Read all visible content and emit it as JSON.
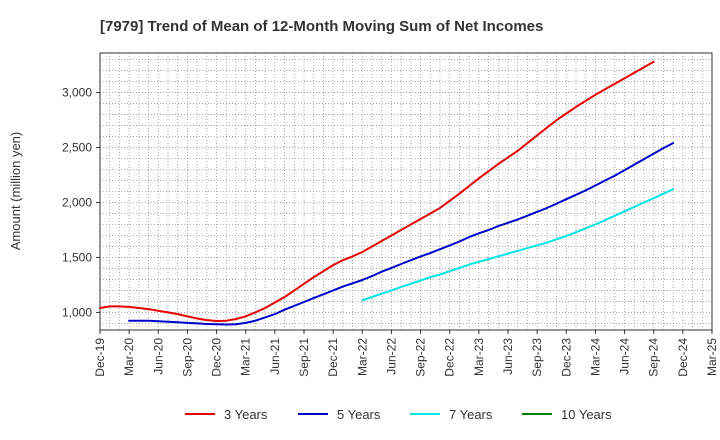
{
  "chart_data": {
    "type": "line",
    "title": "[7979]  Trend of Mean of 12-Month Moving Sum of Net Incomes",
    "ylabel": "Amount (million yen)",
    "xlabel": "",
    "x_ticks": [
      "Dec-19",
      "Mar-20",
      "Jun-20",
      "Sep-20",
      "Dec-20",
      "Mar-21",
      "Jun-21",
      "Sep-21",
      "Dec-21",
      "Mar-22",
      "Jun-22",
      "Sep-22",
      "Dec-22",
      "Mar-23",
      "Jun-23",
      "Sep-23",
      "Dec-23",
      "Mar-24",
      "Jun-24",
      "Sep-24",
      "Dec-24",
      "Mar-25"
    ],
    "y_ticks": [
      1000,
      1500,
      2000,
      2500,
      3000
    ],
    "y_tick_labels": [
      "1,000",
      "1,500",
      "2,000",
      "2,500",
      "3,000"
    ],
    "ylim": [
      840,
      3360
    ],
    "xlim": [
      "Dec-19",
      "Mar-25"
    ],
    "grid": true,
    "legend_position": "bottom",
    "series": [
      {
        "name": "3 Years",
        "color": "#e60000",
        "start": "Dec-19",
        "values": [
          1040,
          1055,
          1055,
          1050,
          1040,
          1030,
          1015,
          1000,
          985,
          965,
          945,
          930,
          922,
          925,
          940,
          965,
          1000,
          1040,
          1090,
          1140,
          1200,
          1260,
          1320,
          1375,
          1430,
          1475,
          1510,
          1550,
          1600,
          1650,
          1700,
          1750,
          1800,
          1850,
          1900,
          1950,
          2015,
          2080,
          2150,
          2220,
          2285,
          2350,
          2410,
          2470,
          2540,
          2610,
          2680,
          2750,
          2810,
          2870,
          2925,
          2980,
          3030,
          3080,
          3130,
          3180,
          3230,
          3280
        ]
      },
      {
        "name": "5 Years",
        "color": "#0000cc",
        "start": "Mar-20",
        "values": [
          925,
          925,
          925,
          920,
          915,
          910,
          905,
          900,
          895,
          892,
          890,
          892,
          905,
          925,
          955,
          985,
          1025,
          1060,
          1095,
          1130,
          1165,
          1200,
          1235,
          1265,
          1295,
          1330,
          1370,
          1405,
          1440,
          1475,
          1510,
          1540,
          1575,
          1610,
          1645,
          1685,
          1720,
          1750,
          1785,
          1815,
          1845,
          1880,
          1915,
          1950,
          1990,
          2030,
          2070,
          2110,
          2155,
          2200,
          2245,
          2295,
          2345,
          2395,
          2445,
          2495,
          2540
        ]
      },
      {
        "name": "7 Years",
        "color": "#00e5e5",
        "start": "Mar-22",
        "values": [
          1110,
          1140,
          1170,
          1200,
          1230,
          1260,
          1290,
          1320,
          1345,
          1375,
          1405,
          1435,
          1460,
          1485,
          1510,
          1535,
          1560,
          1585,
          1610,
          1635,
          1665,
          1695,
          1730,
          1765,
          1800,
          1840,
          1880,
          1920,
          1960,
          2000,
          2040,
          2080,
          2120
        ]
      },
      {
        "name": "10 Years",
        "color": "#008000",
        "start": "Dec-24",
        "values": []
      }
    ]
  }
}
